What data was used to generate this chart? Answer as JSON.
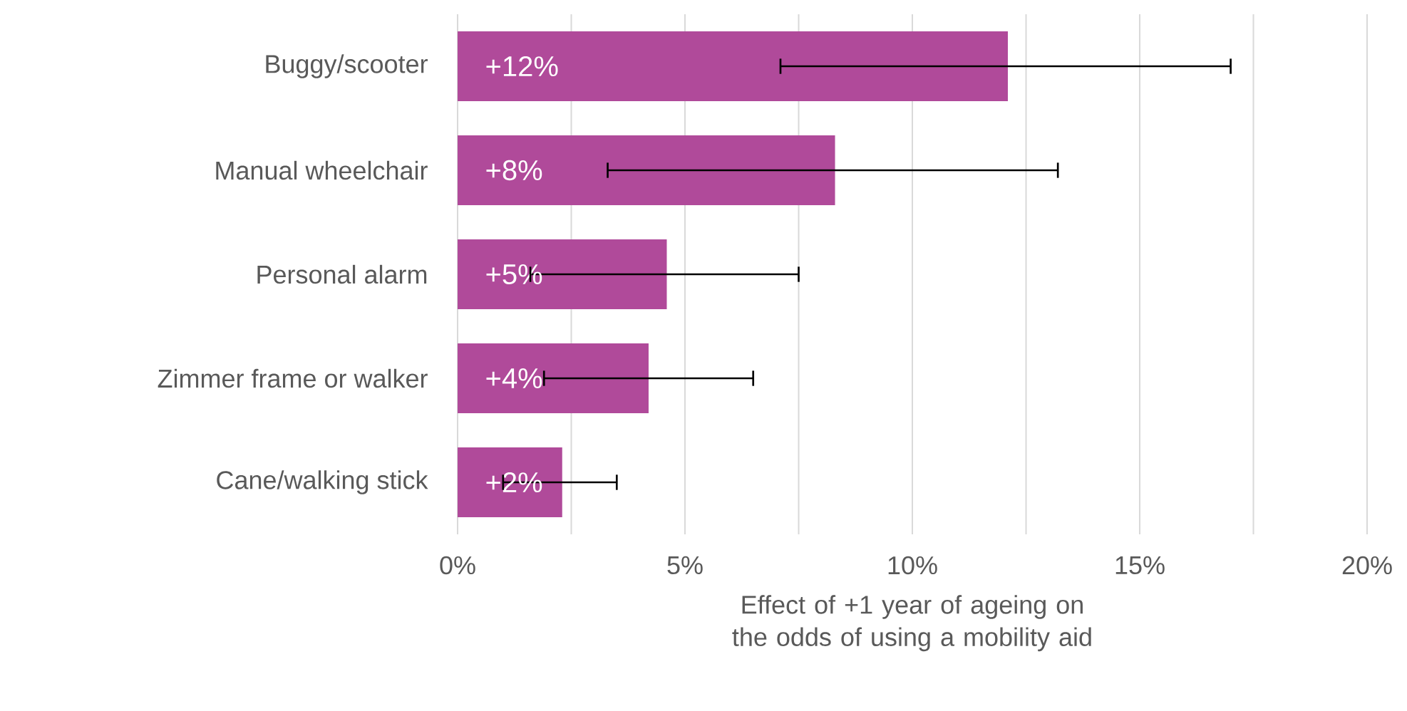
{
  "chart_data": {
    "type": "bar",
    "orientation": "horizontal",
    "xlabel": "Effect of +1 year of ageing on the odds of using a mobility aid",
    "categories": [
      "Buggy/scooter",
      "Manual wheelchair",
      "Personal alarm",
      "Zimmer frame or walker",
      "Cane/walking stick"
    ],
    "values": [
      12.1,
      8.3,
      4.6,
      4.2,
      2.3
    ],
    "value_labels": [
      "+12%",
      "+8%",
      "+5%",
      "+4%",
      "+2%"
    ],
    "errors": [
      [
        7.1,
        17.0
      ],
      [
        3.3,
        13.2
      ],
      [
        1.6,
        7.5
      ],
      [
        1.9,
        6.5
      ],
      [
        1.0,
        3.5
      ]
    ],
    "color": "#b04a9a",
    "xlim": [
      0,
      20
    ],
    "xticks": [
      {
        "value": 0,
        "label": "0%"
      },
      {
        "value": 2.5,
        "label": null
      },
      {
        "value": 5,
        "label": "5%"
      },
      {
        "value": 7.5,
        "label": null
      },
      {
        "value": 10,
        "label": "10%"
      },
      {
        "value": 12.5,
        "label": null
      },
      {
        "value": 15,
        "label": "15%"
      },
      {
        "value": 17.5,
        "label": null
      },
      {
        "value": 20,
        "label": "20%"
      }
    ],
    "grid": "x"
  }
}
